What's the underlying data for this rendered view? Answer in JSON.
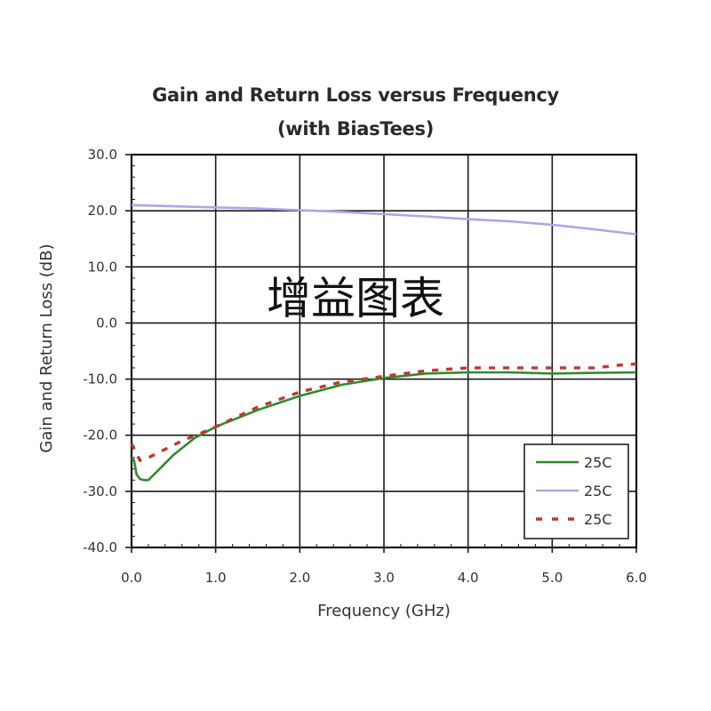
{
  "chart_data": {
    "type": "line",
    "title": "Gain and Return Loss versus Frequency",
    "subtitle": "(with BiasTees)",
    "xlabel": "Frequency (GHz)",
    "ylabel": "Gain and Return Loss (dB)",
    "xlim": [
      0.0,
      6.0
    ],
    "ylim": [
      -40.0,
      30.0
    ],
    "x_ticks": [
      "0.0",
      "1.0",
      "2.0",
      "3.0",
      "4.0",
      "5.0",
      "6.0"
    ],
    "y_ticks": [
      "30.0",
      "20.0",
      "10.0",
      "0.0",
      "-10.0",
      "-20.0",
      "-30.0",
      "-40.0"
    ],
    "grid": true,
    "legend_position": "lower right",
    "watermark": "增益图表",
    "series": [
      {
        "name": "25C",
        "style": "solid",
        "color": "#2e8b2e",
        "x": [
          0.0,
          0.03,
          0.06,
          0.1,
          0.15,
          0.2,
          0.3,
          0.5,
          0.75,
          1.0,
          1.5,
          2.0,
          2.5,
          3.0,
          3.5,
          4.0,
          4.5,
          5.0,
          5.5,
          6.0
        ],
        "values": [
          -24.0,
          -24.5,
          -27.0,
          -27.8,
          -28.0,
          -28.0,
          -26.5,
          -23.5,
          -20.5,
          -18.5,
          -15.5,
          -13.0,
          -11.0,
          -9.8,
          -9.0,
          -8.8,
          -8.8,
          -9.0,
          -8.9,
          -8.8
        ]
      },
      {
        "name": "25C",
        "style": "solid",
        "color": "#a9a9e6",
        "x": [
          0.0,
          0.5,
          1.0,
          1.5,
          2.0,
          2.5,
          3.0,
          3.5,
          4.0,
          4.5,
          5.0,
          5.5,
          6.0
        ],
        "values": [
          21.0,
          20.8,
          20.6,
          20.4,
          20.1,
          19.8,
          19.4,
          19.0,
          18.5,
          18.1,
          17.5,
          16.7,
          15.8
        ]
      },
      {
        "name": "25C",
        "style": "dashed",
        "color": "#c0392b",
        "x": [
          0.0,
          0.05,
          0.1,
          0.2,
          0.4,
          0.6,
          0.8,
          1.0,
          1.5,
          2.0,
          2.5,
          3.0,
          3.5,
          4.0,
          4.5,
          5.0,
          5.5,
          5.8,
          6.0
        ],
        "values": [
          -21.5,
          -23.0,
          -24.5,
          -24.0,
          -22.5,
          -21.0,
          -19.8,
          -18.5,
          -15.0,
          -12.3,
          -10.5,
          -9.5,
          -8.5,
          -8.0,
          -8.0,
          -8.0,
          -8.0,
          -7.5,
          -7.3
        ]
      }
    ]
  },
  "legend": {
    "items": [
      {
        "label": "25C"
      },
      {
        "label": "25C"
      },
      {
        "label": "25C"
      }
    ]
  }
}
